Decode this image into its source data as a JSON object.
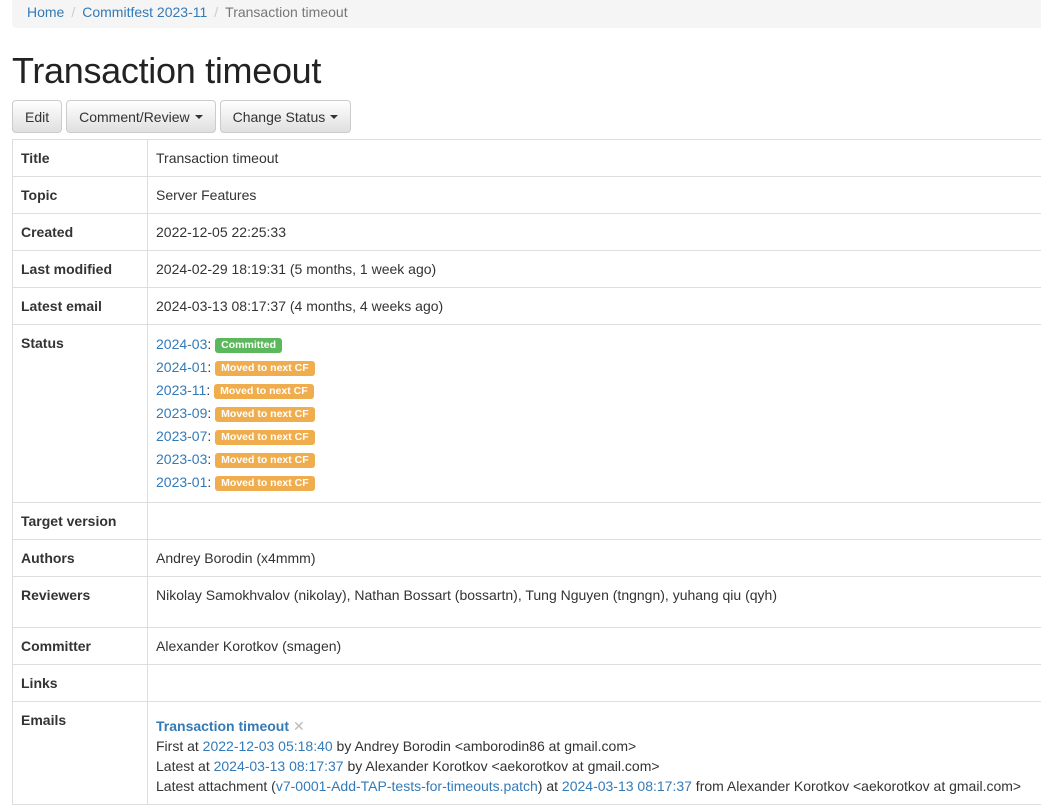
{
  "breadcrumb": [
    "Home",
    "Commitfest 2023-11",
    "Transaction timeout"
  ],
  "title": "Transaction timeout",
  "buttons": {
    "edit": "Edit",
    "comment": "Comment/Review",
    "status": "Change Status"
  },
  "fields": {
    "title": {
      "label": "Title",
      "value": "Transaction timeout"
    },
    "topic": {
      "label": "Topic",
      "value": "Server Features"
    },
    "created": {
      "label": "Created",
      "value": "2022-12-05 22:25:33"
    },
    "modified": {
      "label": "Last modified",
      "value": "2024-02-29 18:19:31 (5 months, 1 week ago)"
    },
    "email": {
      "label": "Latest email",
      "value": "2024-03-13 08:17:37 (4 months, 4 weeks ago)"
    },
    "status": {
      "label": "Status",
      "items": [
        {
          "cf": "2024-03",
          "badge": "Committed",
          "color": "#5cb85c"
        },
        {
          "cf": "2024-01",
          "badge": "Moved to next CF",
          "color": "#f0ad4e"
        },
        {
          "cf": "2023-11",
          "badge": "Moved to next CF",
          "color": "#f0ad4e"
        },
        {
          "cf": "2023-09",
          "badge": "Moved to next CF",
          "color": "#f0ad4e"
        },
        {
          "cf": "2023-07",
          "badge": "Moved to next CF",
          "color": "#f0ad4e"
        },
        {
          "cf": "2023-03",
          "badge": "Moved to next CF",
          "color": "#f0ad4e"
        },
        {
          "cf": "2023-01",
          "badge": "Moved to next CF",
          "color": "#f0ad4e"
        }
      ]
    },
    "target": {
      "label": "Target version",
      "value": ""
    },
    "authors": {
      "label": "Authors",
      "value": "Andrey Borodin (x4mmm)"
    },
    "reviewers": {
      "label": "Reviewers",
      "value": "Nikolay Samokhvalov (nikolay), Nathan Bossart (bossartn), Tung Nguyen (tngngn), yuhang qiu (qyh)"
    },
    "committer": {
      "label": "Committer",
      "value": "Alexander Korotkov (smagen)"
    },
    "links": {
      "label": "Links",
      "value": ""
    },
    "emails": {
      "label": "Emails",
      "thread": "Transaction timeout",
      "close": "✕",
      "first_pre": "First at ",
      "first_date": "2022-12-03 05:18:40",
      "first_post": " by Andrey Borodin <amborodin86 at gmail.com>",
      "latest_pre": "Latest at ",
      "latest_date": "2024-03-13 08:17:37",
      "latest_post": " by Alexander Korotkov <aekorotkov at gmail.com>",
      "att_pre": "Latest attachment (",
      "att_file": "v7-0001-Add-TAP-tests-for-timeouts.patch",
      "att_mid": ") at ",
      "att_date": "2024-03-13 08:17:37",
      "att_post": " from Alexander Korotkov <aekorotkov at gmail.com>"
    }
  }
}
